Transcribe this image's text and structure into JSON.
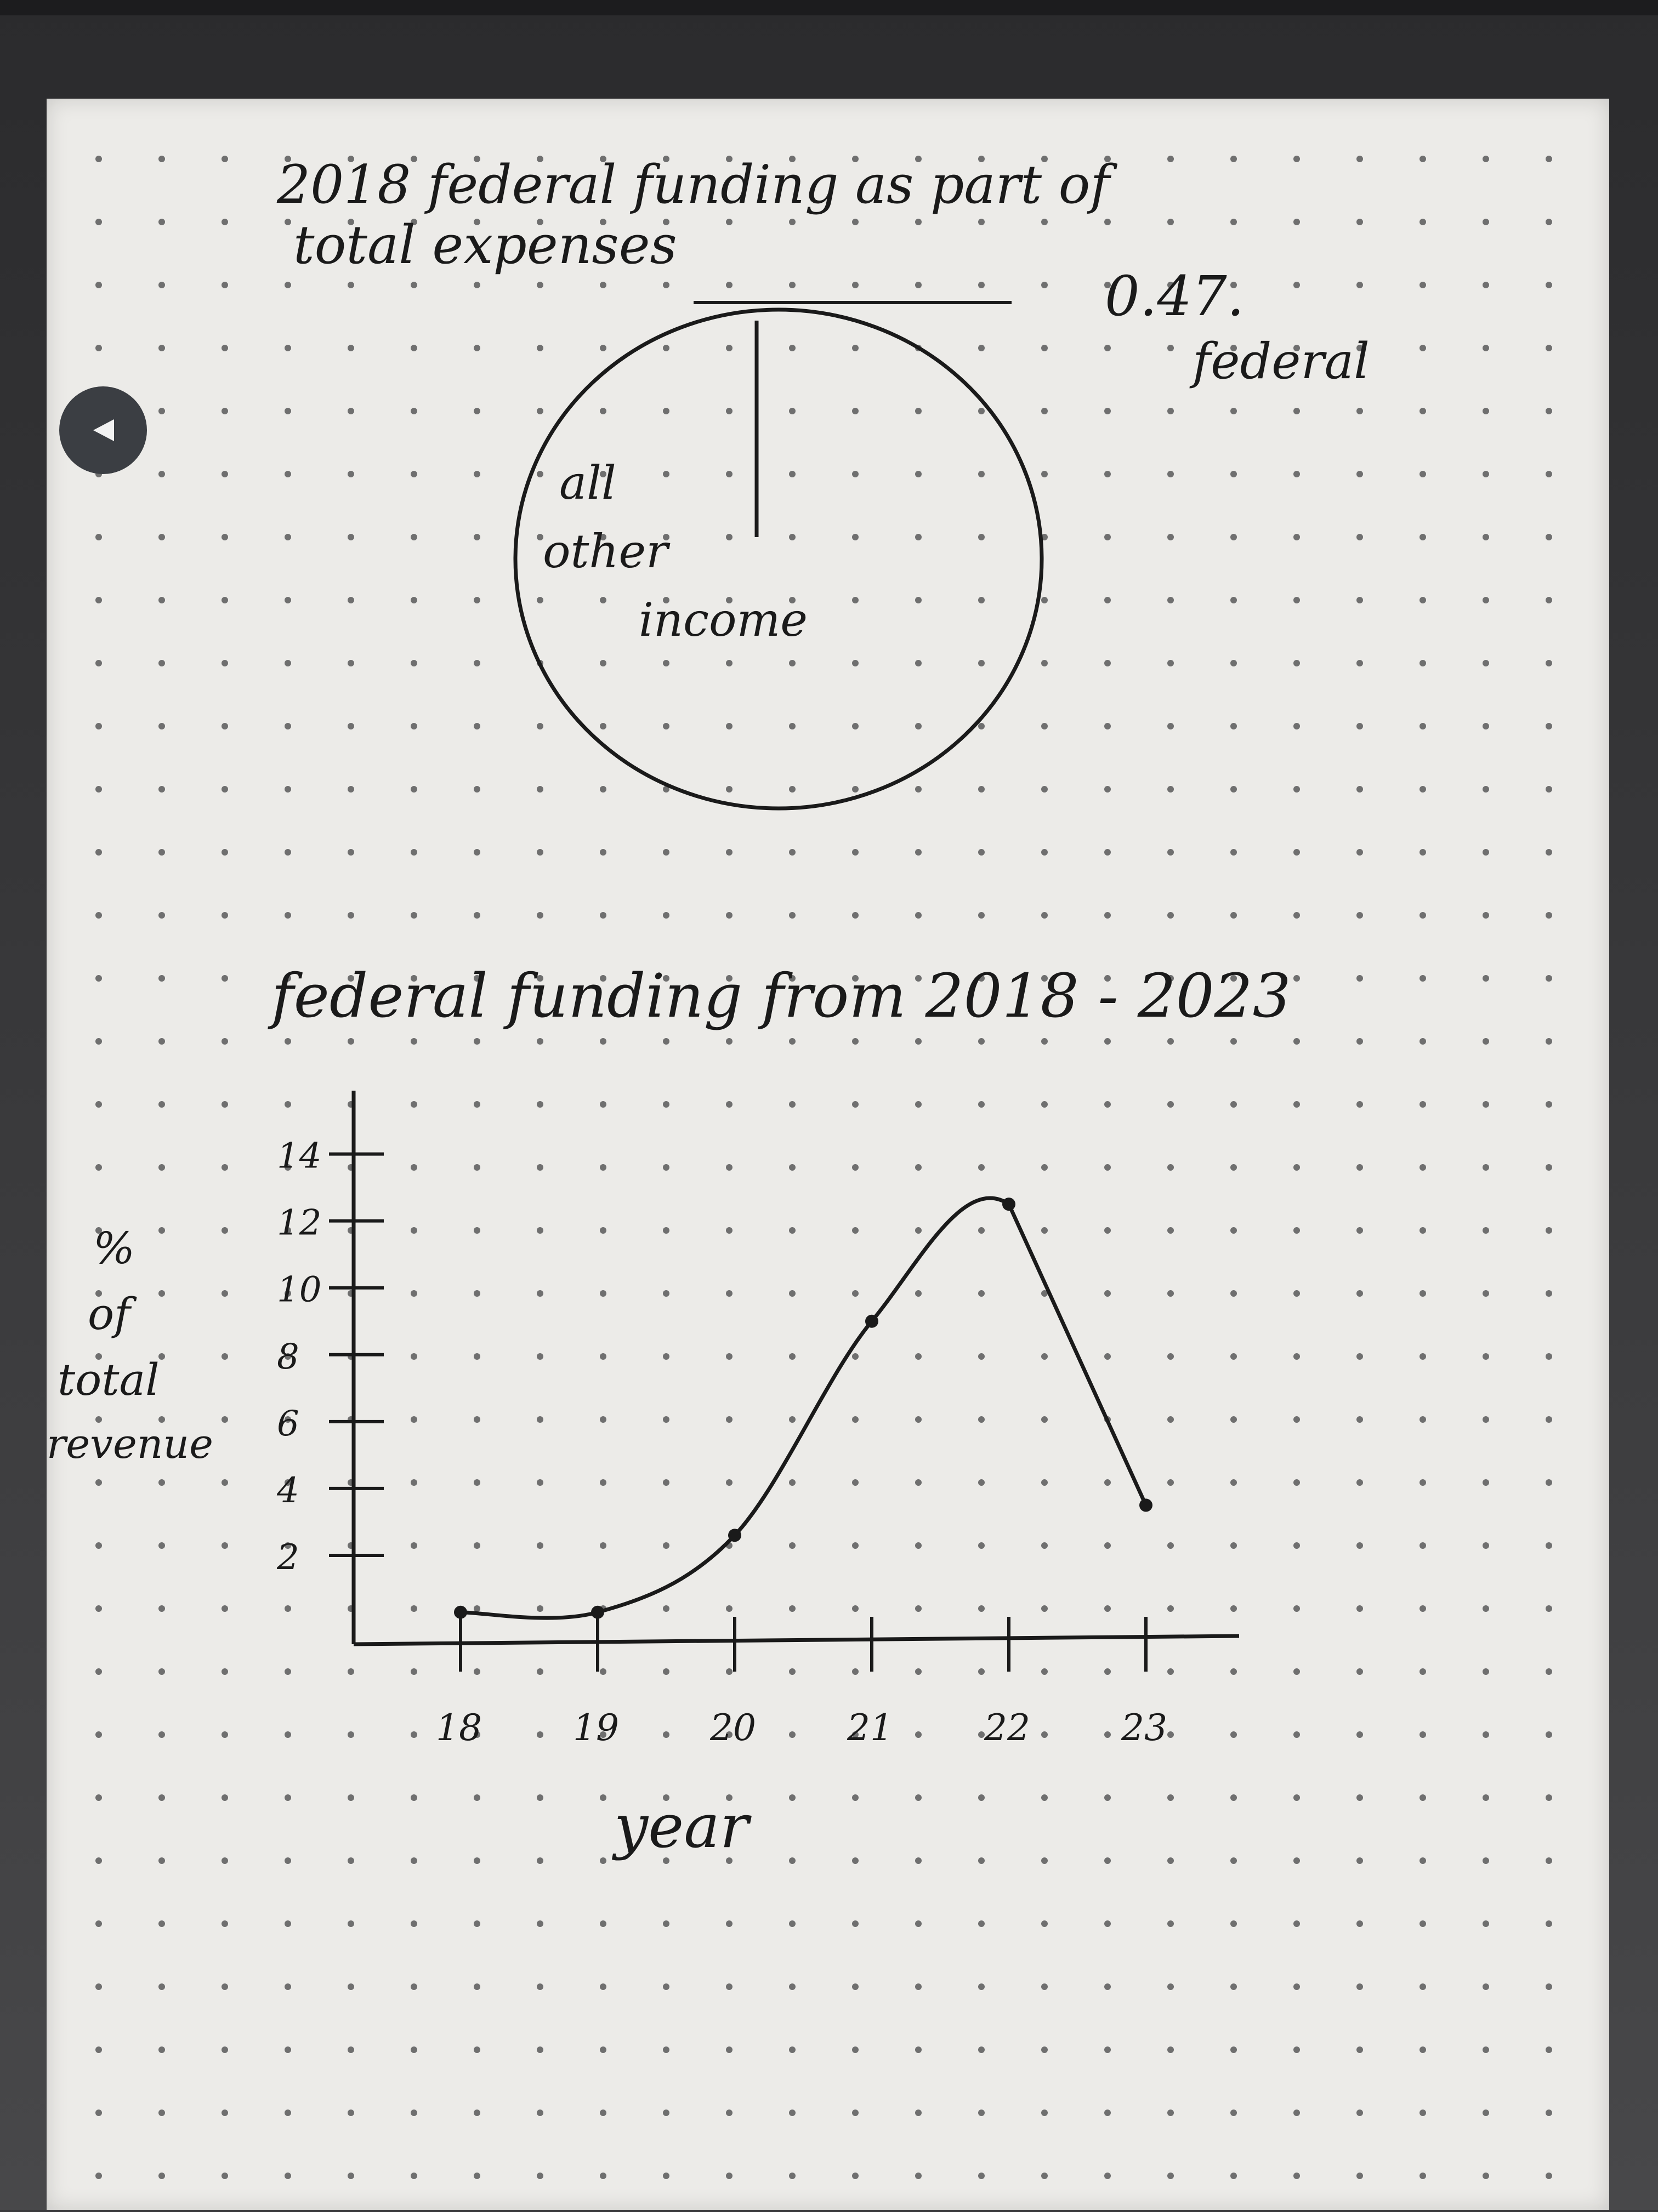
{
  "device": {
    "back_button_icon": "back-triangle-icon"
  },
  "pie_chart": {
    "title_line1": "2018 federal funding as part of",
    "title_line2": "total expenses",
    "slice_labels": {
      "federal_value": "0.47.",
      "federal_name": "federal",
      "other_line1": "all",
      "other_line2": "other",
      "other_line3": "income"
    }
  },
  "line_chart": {
    "title": "federal funding from 2018 - 2023",
    "ylabel_lines": [
      "%",
      "of",
      "total",
      "revenue"
    ],
    "xlabel": "year"
  },
  "chart_data": [
    {
      "type": "pie",
      "title": "2018 federal funding as part of total expenses",
      "slices": [
        {
          "label": "federal",
          "value": 0.47
        },
        {
          "label": "all other income",
          "value": 99.53
        }
      ]
    },
    {
      "type": "line",
      "title": "federal funding from 2018 - 2023",
      "xlabel": "year",
      "ylabel": "% of total revenue",
      "x": [
        "18",
        "19",
        "20",
        "21",
        "22",
        "23"
      ],
      "y_ticks": [
        2,
        4,
        6,
        8,
        10,
        12,
        14
      ],
      "ylim": [
        0,
        14
      ],
      "series": [
        {
          "values": [
            0.3,
            0.3,
            2.6,
            9,
            12.5,
            3.5
          ]
        }
      ],
      "grid": false,
      "color": "#1a1a1a"
    }
  ]
}
